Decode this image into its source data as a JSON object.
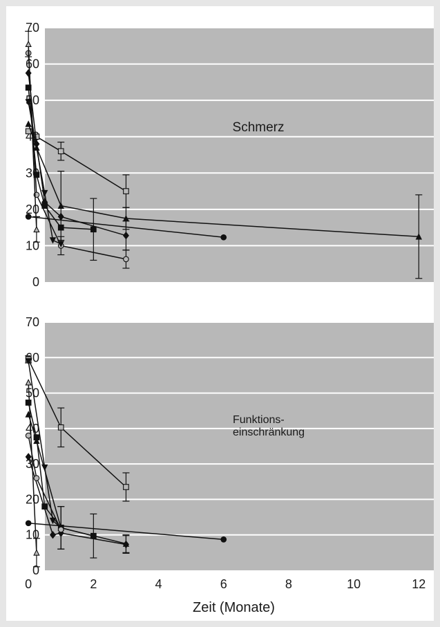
{
  "chart_data": [
    {
      "type": "line",
      "annotation": "Schmerz",
      "xlim": [
        -0.5,
        13
      ],
      "ylim": [
        0,
        70
      ],
      "y_ticks": [
        "0",
        "10",
        "20",
        "30",
        "40",
        "50",
        "60",
        "70"
      ],
      "x_ticks": [
        "0",
        "2",
        "4",
        "6",
        "8",
        "10",
        "12"
      ],
      "grid": true,
      "series": [
        {
          "marker": "square-open",
          "points": [
            {
              "x": 0,
              "y": 41.5
            },
            {
              "x": 0.25,
              "y": 40
            },
            {
              "x": 1,
              "y": 36
            },
            {
              "x": 3,
              "y": 25
            }
          ],
          "errors": [
            0,
            0,
            2.5,
            4.5
          ]
        },
        {
          "marker": "triangle-filled",
          "points": [
            {
              "x": 0,
              "y": 43.5
            },
            {
              "x": 0.25,
              "y": 37
            },
            {
              "x": 1,
              "y": 21
            },
            {
              "x": 3,
              "y": 17.5
            },
            {
              "x": 12,
              "y": 12.5
            }
          ],
          "errors": [
            0,
            0,
            9.5,
            3,
            11.5
          ]
        },
        {
          "marker": "diamond-filled",
          "points": [
            {
              "x": 0,
              "y": 57.5
            },
            {
              "x": 0.25,
              "y": 38
            },
            {
              "x": 0.5,
              "y": 22
            },
            {
              "x": 1,
              "y": 18
            },
            {
              "x": 3,
              "y": 12.8
            }
          ],
          "errors": [
            0,
            0,
            0,
            0,
            4
          ]
        },
        {
          "marker": "square-filled",
          "points": [
            {
              "x": 0,
              "y": 53.5
            },
            {
              "x": 0.25,
              "y": 29.5
            },
            {
              "x": 0.5,
              "y": 21
            },
            {
              "x": 1,
              "y": 15
            },
            {
              "x": 2,
              "y": 14.5
            }
          ],
          "errors": [
            0,
            0,
            0,
            0,
            8.5
          ]
        },
        {
          "marker": "circle-open",
          "points": [
            {
              "x": 0,
              "y": 63
            },
            {
              "x": 0.25,
              "y": 24
            },
            {
              "x": 1,
              "y": 10
            },
            {
              "x": 3,
              "y": 6.3
            }
          ],
          "errors": [
            0,
            0,
            2.5,
            2.5
          ]
        },
        {
          "marker": "triangle-open",
          "points": [
            {
              "x": 0,
              "y": 65.5
            },
            {
              "x": 0.25,
              "y": 14.5
            }
          ],
          "errors": [
            3.5,
            3.5
          ]
        },
        {
          "marker": "triangle-down-filled",
          "points": [
            {
              "x": 0,
              "y": 49.5
            },
            {
              "x": 0.5,
              "y": 24.5
            },
            {
              "x": 0.75,
              "y": 11.5
            },
            {
              "x": 1,
              "y": 10.5
            }
          ],
          "errors": [
            0,
            0,
            0,
            0
          ]
        },
        {
          "marker": "circle-filled",
          "points": [
            {
              "x": 0,
              "y": 18
            },
            {
              "x": 6,
              "y": 12.3
            }
          ],
          "errors": [
            0,
            0
          ]
        }
      ]
    },
    {
      "type": "line",
      "annotation": "Funktions-\neinschränkung",
      "xlabel": "Zeit (Monate)",
      "xlim": [
        -0.5,
        13
      ],
      "ylim": [
        0,
        70
      ],
      "y_ticks": [
        "0",
        "10",
        "20",
        "30",
        "40",
        "50",
        "60",
        "70"
      ],
      "x_ticks": [
        "0",
        "2",
        "4",
        "6",
        "8",
        "10",
        "12"
      ],
      "grid": true,
      "series": [
        {
          "marker": "square-open",
          "points": [
            {
              "x": 0,
              "y": 59.5
            },
            {
              "x": 1,
              "y": 40.3
            },
            {
              "x": 3,
              "y": 23.5
            }
          ],
          "errors": [
            1,
            5.5,
            4
          ]
        },
        {
          "marker": "triangle-down-filled",
          "points": [
            {
              "x": 0,
              "y": 59
            },
            {
              "x": 0.5,
              "y": 29
            },
            {
              "x": 0.75,
              "y": 14
            },
            {
              "x": 1,
              "y": 12
            }
          ],
          "errors": [
            0,
            0,
            0,
            6
          ]
        },
        {
          "marker": "triangle-open",
          "points": [
            {
              "x": 0,
              "y": 53
            },
            {
              "x": 0.25,
              "y": 5
            }
          ],
          "errors": [
            0,
            4
          ]
        },
        {
          "marker": "square-filled",
          "points": [
            {
              "x": 0,
              "y": 47.3
            },
            {
              "x": 0.25,
              "y": 37.5
            },
            {
              "x": 0.5,
              "y": 18
            },
            {
              "x": 1,
              "y": 12
            },
            {
              "x": 2,
              "y": 9.7
            }
          ],
          "errors": [
            0,
            0,
            0,
            0,
            6.2
          ]
        },
        {
          "marker": "triangle-filled",
          "points": [
            {
              "x": 0,
              "y": 44
            },
            {
              "x": 0.25,
              "y": 36.5
            },
            {
              "x": 1,
              "y": 12
            },
            {
              "x": 3,
              "y": 7.5
            }
          ],
          "errors": [
            0,
            0,
            6,
            2.5
          ]
        },
        {
          "marker": "diamond-filled",
          "points": [
            {
              "x": 0,
              "y": 32
            },
            {
              "x": 0.75,
              "y": 10
            },
            {
              "x": 1,
              "y": 10.5
            },
            {
              "x": 3,
              "y": 7.3
            }
          ],
          "errors": [
            0,
            0,
            0,
            2.5
          ]
        },
        {
          "marker": "circle-open",
          "points": [
            {
              "x": 0,
              "y": 38
            },
            {
              "x": 0.25,
              "y": 26
            },
            {
              "x": 1,
              "y": 11.5
            }
          ],
          "errors": [
            0,
            0,
            0
          ]
        },
        {
          "marker": "circle-filled",
          "points": [
            {
              "x": 0,
              "y": 13.3
            },
            {
              "x": 6,
              "y": 8.7
            }
          ],
          "errors": [
            0,
            0
          ]
        }
      ]
    }
  ]
}
